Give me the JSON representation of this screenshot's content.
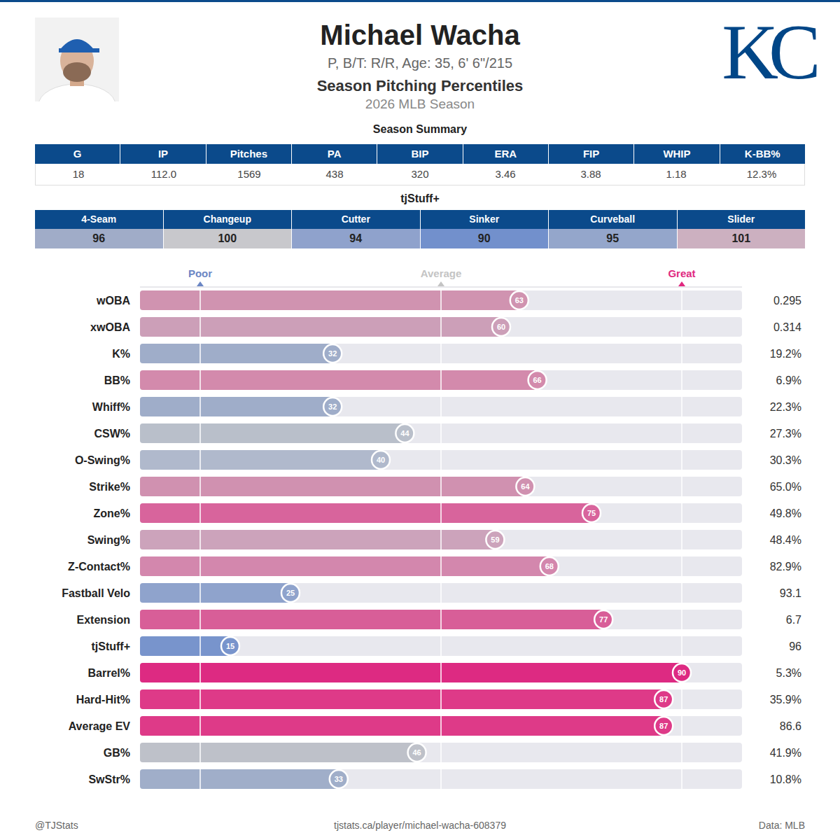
{
  "header": {
    "title": "Michael Wacha",
    "subtitle": "P, B/T: R/R, Age: 35, 6' 6\"/215",
    "heading": "Season Pitching Percentiles",
    "season": "2026 MLB Season",
    "logo": "KC"
  },
  "season_summary": {
    "title": "Season Summary",
    "columns": [
      "G",
      "IP",
      "Pitches",
      "PA",
      "BIP",
      "ERA",
      "FIP",
      "WHIP",
      "K-BB%"
    ],
    "values": [
      "18",
      "112.0",
      "1569",
      "438",
      "320",
      "3.46",
      "3.88",
      "1.18",
      "12.3%"
    ]
  },
  "tjstuff": {
    "title": "tjStuff+",
    "columns": [
      "4-Seam",
      "Changeup",
      "Cutter",
      "Sinker",
      "Curveball",
      "Slider"
    ],
    "values": [
      96,
      100,
      94,
      90,
      95,
      101
    ],
    "colors": [
      "#a0acc8",
      "#c8c8cc",
      "#8fa2cc",
      "#7290cc",
      "#94a6cb",
      "#ccb0c0"
    ]
  },
  "chart_data": {
    "type": "bar",
    "orientation": "horizontal",
    "categories": [
      "wOBA",
      "xwOBA",
      "K%",
      "BB%",
      "Whiff%",
      "CSW%",
      "O-Swing%",
      "Strike%",
      "Zone%",
      "Swing%",
      "Z-Contact%",
      "Fastball Velo",
      "Extension",
      "tjStuff+",
      "Barrel%",
      "Hard-Hit%",
      "Average EV",
      "GB%",
      "SwStr%"
    ],
    "values": [
      63,
      60,
      32,
      66,
      32,
      44,
      40,
      64,
      75,
      59,
      68,
      25,
      77,
      15,
      90,
      87,
      87,
      46,
      33
    ],
    "colors": [
      "#d093b0",
      "#cc9fb8",
      "#9fadc9",
      "#d38aac",
      "#9fadc9",
      "#b9bfca",
      "#b0b9cc",
      "#d091b0",
      "#d8649c",
      "#cca3bb",
      "#d387ad",
      "#8fa3cc",
      "#d85e98",
      "#7894cc",
      "#dd2a82",
      "#de3a88",
      "#de3a88",
      "#bec1c9",
      "#a0aec9"
    ],
    "stats": [
      "0.295",
      "0.314",
      "19.2%",
      "6.9%",
      "22.3%",
      "27.3%",
      "30.3%",
      "65.0%",
      "49.8%",
      "48.4%",
      "82.9%",
      "93.1",
      "6.7",
      "96",
      "5.3%",
      "35.9%",
      "86.6",
      "41.9%",
      "10.8%"
    ],
    "xlim": [
      0,
      100
    ],
    "xticks": [
      {
        "value": 10,
        "label": "Poor"
      },
      {
        "value": 50,
        "label": "Average"
      },
      {
        "value": 90,
        "label": "Great"
      }
    ],
    "grid": true,
    "data_labels": true
  },
  "footer": {
    "left": "@TJStats",
    "center": "tjstats.ca/player/michael-wacha-608379",
    "right": "Data: MLB"
  }
}
